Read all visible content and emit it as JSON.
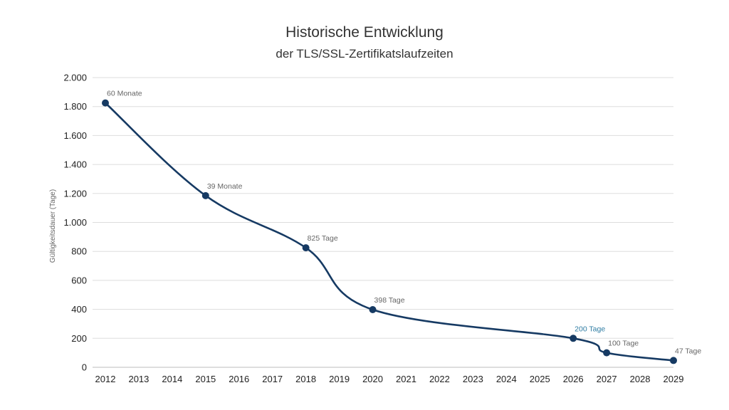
{
  "chart_data": {
    "type": "line",
    "title": "Historische Entwicklung",
    "subtitle": "der TLS/SSL-Zertifikatslaufzeiten",
    "ylabel": "Gültigkeitsdauer (Tage)",
    "xlabel": "",
    "ylim": [
      0,
      2000
    ],
    "yticks": [
      0,
      200,
      400,
      600,
      800,
      1000,
      1200,
      1400,
      1600,
      1800,
      2000
    ],
    "ytick_labels": [
      "0",
      "200",
      "400",
      "600",
      "800",
      "1.000",
      "1.200",
      "1.400",
      "1.600",
      "1.800",
      "2.000"
    ],
    "categories": [
      "2012",
      "2013",
      "2014",
      "2015",
      "2016",
      "2017",
      "2018",
      "2019",
      "2020",
      "2021",
      "2022",
      "2023",
      "2024",
      "2025",
      "2026",
      "2027",
      "2028",
      "2029"
    ],
    "grid": true,
    "points": [
      {
        "x": "2012",
        "y": 1825,
        "label": "60 Monate"
      },
      {
        "x": "2015",
        "y": 1185,
        "label": "39 Monate"
      },
      {
        "x": "2018",
        "y": 825,
        "label": "825 Tage"
      },
      {
        "x": "2020",
        "y": 398,
        "label": "398 Tage"
      },
      {
        "x": "2026",
        "y": 200,
        "label": "200 Tage",
        "highlight": true
      },
      {
        "x": "2027",
        "y": 100,
        "label": "100 Tage"
      },
      {
        "x": "2029",
        "y": 47,
        "label": "47 Tage"
      }
    ],
    "colors": {
      "line": "#163a63",
      "grid": "#dddddd",
      "label": "#666666",
      "highlight_label": "#2e7ca3"
    }
  }
}
